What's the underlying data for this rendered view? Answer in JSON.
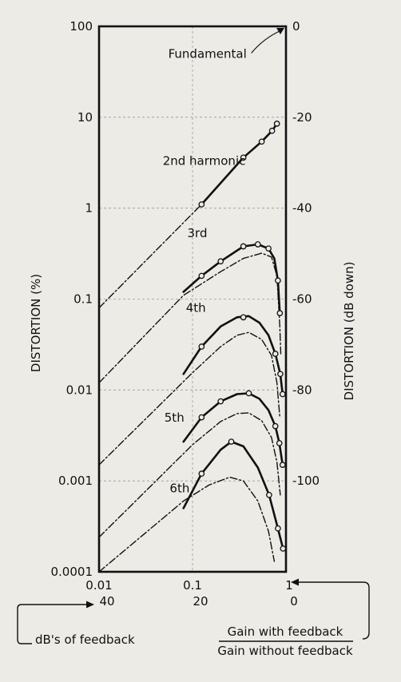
{
  "chart_data": {
    "type": "line",
    "scale": "log-log",
    "xlim": [
      0.01,
      1
    ],
    "ylim": [
      0.0001,
      100
    ],
    "x_ticks": [
      "0.01",
      "0.1",
      "1"
    ],
    "y_ticks": [
      "100",
      "10",
      "1",
      "0.1",
      "0.01",
      "0.001",
      "0.0001"
    ],
    "right_ticks": [
      "0",
      "-20",
      "-40",
      "-60",
      "-80",
      "-100"
    ],
    "db_feedback_ticks": [
      "40",
      "20",
      "0"
    ],
    "ylabel": "DISTORTION (%)",
    "ylabel_right": "DISTORTION (dB down)",
    "xlabel_left": "dB's of feedback",
    "ratio_numerator": "Gain with feedback",
    "ratio_denominator": "Gain without feedback",
    "grid": true,
    "series": [
      {
        "name": "Fundamental",
        "style": "solid",
        "points": [
          [
            0.95,
            100
          ]
        ]
      },
      {
        "name": "2nd harmonic",
        "style": "solid",
        "points": [
          [
            0.125,
            1.1
          ],
          [
            0.35,
            3.6
          ],
          [
            0.55,
            5.4
          ],
          [
            0.71,
            7.1
          ],
          [
            0.8,
            8.5
          ]
        ]
      },
      {
        "name": "2nd harmonic extrapolation",
        "style": "dashdot",
        "points": [
          [
            0.01,
            0.08
          ],
          [
            0.125,
            1.1
          ]
        ]
      },
      {
        "name": "3rd",
        "style": "solid",
        "points": [
          [
            0.08,
            0.12
          ],
          [
            0.125,
            0.18
          ],
          [
            0.2,
            0.26
          ],
          [
            0.35,
            0.38
          ],
          [
            0.5,
            0.4
          ],
          [
            0.65,
            0.36
          ],
          [
            0.75,
            0.28
          ],
          [
            0.82,
            0.16
          ],
          [
            0.86,
            0.07
          ]
        ]
      },
      {
        "name": "3rd dash",
        "style": "dashdot",
        "points": [
          [
            0.01,
            0.012
          ],
          [
            0.08,
            0.11
          ],
          [
            0.2,
            0.2
          ],
          [
            0.35,
            0.28
          ],
          [
            0.55,
            0.32
          ],
          [
            0.7,
            0.29
          ],
          [
            0.8,
            0.18
          ],
          [
            0.86,
            0.05
          ],
          [
            0.88,
            0.025
          ]
        ]
      },
      {
        "name": "4th",
        "style": "solid",
        "points": [
          [
            0.08,
            0.015
          ],
          [
            0.125,
            0.03
          ],
          [
            0.2,
            0.05
          ],
          [
            0.3,
            0.063
          ],
          [
            0.4,
            0.065
          ],
          [
            0.52,
            0.055
          ],
          [
            0.65,
            0.04
          ],
          [
            0.77,
            0.025
          ],
          [
            0.87,
            0.015
          ],
          [
            0.92,
            0.009
          ]
        ]
      },
      {
        "name": "4th dash",
        "style": "dashdot",
        "points": [
          [
            0.01,
            0.0015
          ],
          [
            0.1,
            0.0155
          ],
          [
            0.2,
            0.03
          ],
          [
            0.3,
            0.04
          ],
          [
            0.4,
            0.043
          ],
          [
            0.55,
            0.036
          ],
          [
            0.7,
            0.024
          ],
          [
            0.8,
            0.012
          ],
          [
            0.86,
            0.005
          ]
        ]
      },
      {
        "name": "5th",
        "style": "solid",
        "points": [
          [
            0.08,
            0.0027
          ],
          [
            0.125,
            0.005
          ],
          [
            0.2,
            0.0075
          ],
          [
            0.3,
            0.009
          ],
          [
            0.4,
            0.0092
          ],
          [
            0.52,
            0.008
          ],
          [
            0.65,
            0.006
          ],
          [
            0.77,
            0.004
          ],
          [
            0.85,
            0.0026
          ],
          [
            0.92,
            0.0015
          ]
        ]
      },
      {
        "name": "5th dash",
        "style": "dashdot",
        "points": [
          [
            0.01,
            0.00024
          ],
          [
            0.1,
            0.0025
          ],
          [
            0.2,
            0.0045
          ],
          [
            0.3,
            0.0055
          ],
          [
            0.4,
            0.0056
          ],
          [
            0.55,
            0.0046
          ],
          [
            0.7,
            0.003
          ],
          [
            0.8,
            0.0016
          ],
          [
            0.87,
            0.0007
          ]
        ]
      },
      {
        "name": "6th",
        "style": "solid",
        "points": [
          [
            0.08,
            0.0005
          ],
          [
            0.125,
            0.0012
          ],
          [
            0.2,
            0.0022
          ],
          [
            0.26,
            0.0027
          ],
          [
            0.35,
            0.0024
          ],
          [
            0.5,
            0.0014
          ],
          [
            0.66,
            0.0007
          ],
          [
            0.82,
            0.0003
          ],
          [
            0.93,
            0.00018
          ]
        ]
      },
      {
        "name": "6th dash",
        "style": "dashdot",
        "points": [
          [
            0.01,
            0.0001
          ],
          [
            0.08,
            0.0006
          ],
          [
            0.15,
            0.0009
          ],
          [
            0.25,
            0.0011
          ],
          [
            0.35,
            0.001
          ],
          [
            0.5,
            0.0006
          ],
          [
            0.65,
            0.00028
          ],
          [
            0.75,
            0.00013
          ]
        ]
      }
    ],
    "curve_labels": [
      {
        "text": "Fundamental",
        "series": "Fundamental"
      },
      {
        "text": "2nd harmonic",
        "series": "2nd harmonic"
      },
      {
        "text": "3rd",
        "series": "3rd"
      },
      {
        "text": "4th",
        "series": "4th"
      },
      {
        "text": "5th",
        "series": "5th"
      },
      {
        "text": "6th",
        "series": "6th"
      }
    ],
    "markers": [
      [
        0.125,
        1.1
      ],
      [
        0.35,
        3.6
      ],
      [
        0.55,
        5.4
      ],
      [
        0.71,
        7.1
      ],
      [
        0.8,
        8.5
      ],
      [
        0.125,
        0.18
      ],
      [
        0.2,
        0.26
      ],
      [
        0.35,
        0.38
      ],
      [
        0.5,
        0.4
      ],
      [
        0.65,
        0.36
      ],
      [
        0.82,
        0.16
      ],
      [
        0.86,
        0.07
      ],
      [
        0.125,
        0.03
      ],
      [
        0.35,
        0.063
      ],
      [
        0.77,
        0.025
      ],
      [
        0.87,
        0.015
      ],
      [
        0.92,
        0.009
      ],
      [
        0.125,
        0.005
      ],
      [
        0.2,
        0.0075
      ],
      [
        0.4,
        0.0092
      ],
      [
        0.77,
        0.004
      ],
      [
        0.85,
        0.0026
      ],
      [
        0.92,
        0.0015
      ],
      [
        0.125,
        0.0012
      ],
      [
        0.26,
        0.0027
      ],
      [
        0.66,
        0.0007
      ],
      [
        0.82,
        0.0003
      ],
      [
        0.93,
        0.00018
      ]
    ]
  }
}
